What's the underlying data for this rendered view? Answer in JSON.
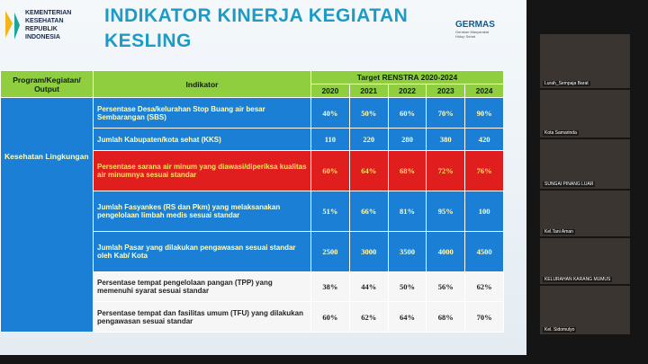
{
  "header": {
    "ministry": [
      "KEMENTERIAN",
      "KESEHATAN",
      "REPUBLIK",
      "INDONESIA"
    ],
    "title": [
      "INDIKATOR KINERJA KEGIATAN",
      "KESLING"
    ],
    "brand": "GERMAS",
    "brand_tagline": "Gerakan Masyarakat Hidup Sehat"
  },
  "table": {
    "headers": {
      "program": "Program/Kegiatan/ Output",
      "indicator": "Indikator",
      "target": "Target RENSTRA 2020-2024",
      "years": [
        "2020",
        "2021",
        "2022",
        "2023",
        "2024"
      ]
    },
    "program": "Kesehatan Lingkungan",
    "rows": [
      {
        "indicator": "Persentase Desa/kelurahan Stop Buang air besar Sembarangan (SBS)",
        "color": "blue",
        "values": [
          "40%",
          "50%",
          "60%",
          "70%",
          "90%"
        ]
      },
      {
        "indicator": "Jumlah Kabupaten/kota sehat (KKS)",
        "color": "blue",
        "values": [
          "110",
          "220",
          "280",
          "380",
          "420"
        ]
      },
      {
        "indicator": "Persentase sarana air minum yang diawasi/diperiksa kualitas air minumnya sesuai standar",
        "color": "red",
        "values": [
          "60%",
          "64%",
          "68%",
          "72%",
          "76%"
        ]
      },
      {
        "indicator": "Jumlah Fasyankes (RS dan Pkm) yang melaksanakan pengelolaan limbah medis sesuai standar",
        "color": "blue",
        "values": [
          "51%",
          "66%",
          "81%",
          "95%",
          "100"
        ]
      },
      {
        "indicator": "Jumlah Pasar yang dilakukan pengawasan sesuai standar oleh Kab/ Kota",
        "color": "blue",
        "values": [
          "2500",
          "3000",
          "3500",
          "4000",
          "4500"
        ]
      },
      {
        "indicator": "Persentase tempat pengelolaan pangan (TPP) yang memenuhi syarat sesuai standar",
        "color": "white",
        "values": [
          "38%",
          "44%",
          "50%",
          "56%",
          "62%"
        ]
      },
      {
        "indicator": "Persentase tempat dan fasilitas umum (TFU) yang dilakukan pengawasan sesuai standar",
        "color": "white",
        "values": [
          "60%",
          "62%",
          "64%",
          "68%",
          "70%"
        ]
      }
    ]
  },
  "participants": [
    "Lurah_Sempaja Barat",
    "Kota Samarinda",
    "SUNGAI PINANG LUAR",
    "Kel.Tani Aman",
    "KELURAHAN KARANG MUMUS",
    "Kel. Sidomulyo"
  ]
}
